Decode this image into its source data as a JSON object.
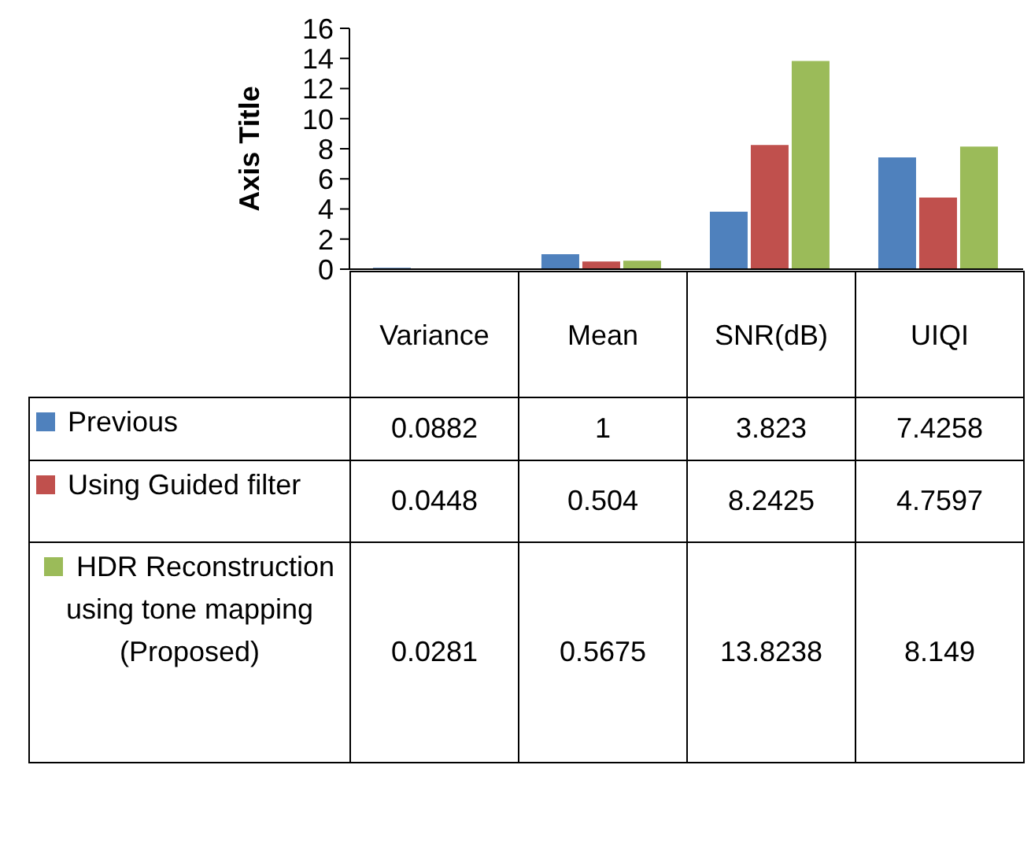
{
  "chart_data": {
    "type": "bar",
    "ylabel": "Axis Title",
    "categories": [
      "Variance",
      "Mean",
      "SNR(dB)",
      "UIQI"
    ],
    "series": [
      {
        "name": "Previous",
        "color": "#4f81bd",
        "values": [
          0.0882,
          1,
          3.823,
          7.4258
        ]
      },
      {
        "name": "Using Guided filter",
        "color": "#c0504d",
        "values": [
          0.0448,
          0.504,
          8.2425,
          4.7597
        ]
      },
      {
        "name": "HDR Reconstruction using  tone mapping (Proposed)",
        "color": "#9bbb59",
        "values": [
          0.0281,
          0.5675,
          13.8238,
          8.149
        ]
      }
    ],
    "ylim": [
      0,
      16
    ],
    "yticks": [
      0,
      2,
      4,
      6,
      8,
      10,
      12,
      14,
      16
    ],
    "data_labels": true,
    "legend": "bottom"
  }
}
